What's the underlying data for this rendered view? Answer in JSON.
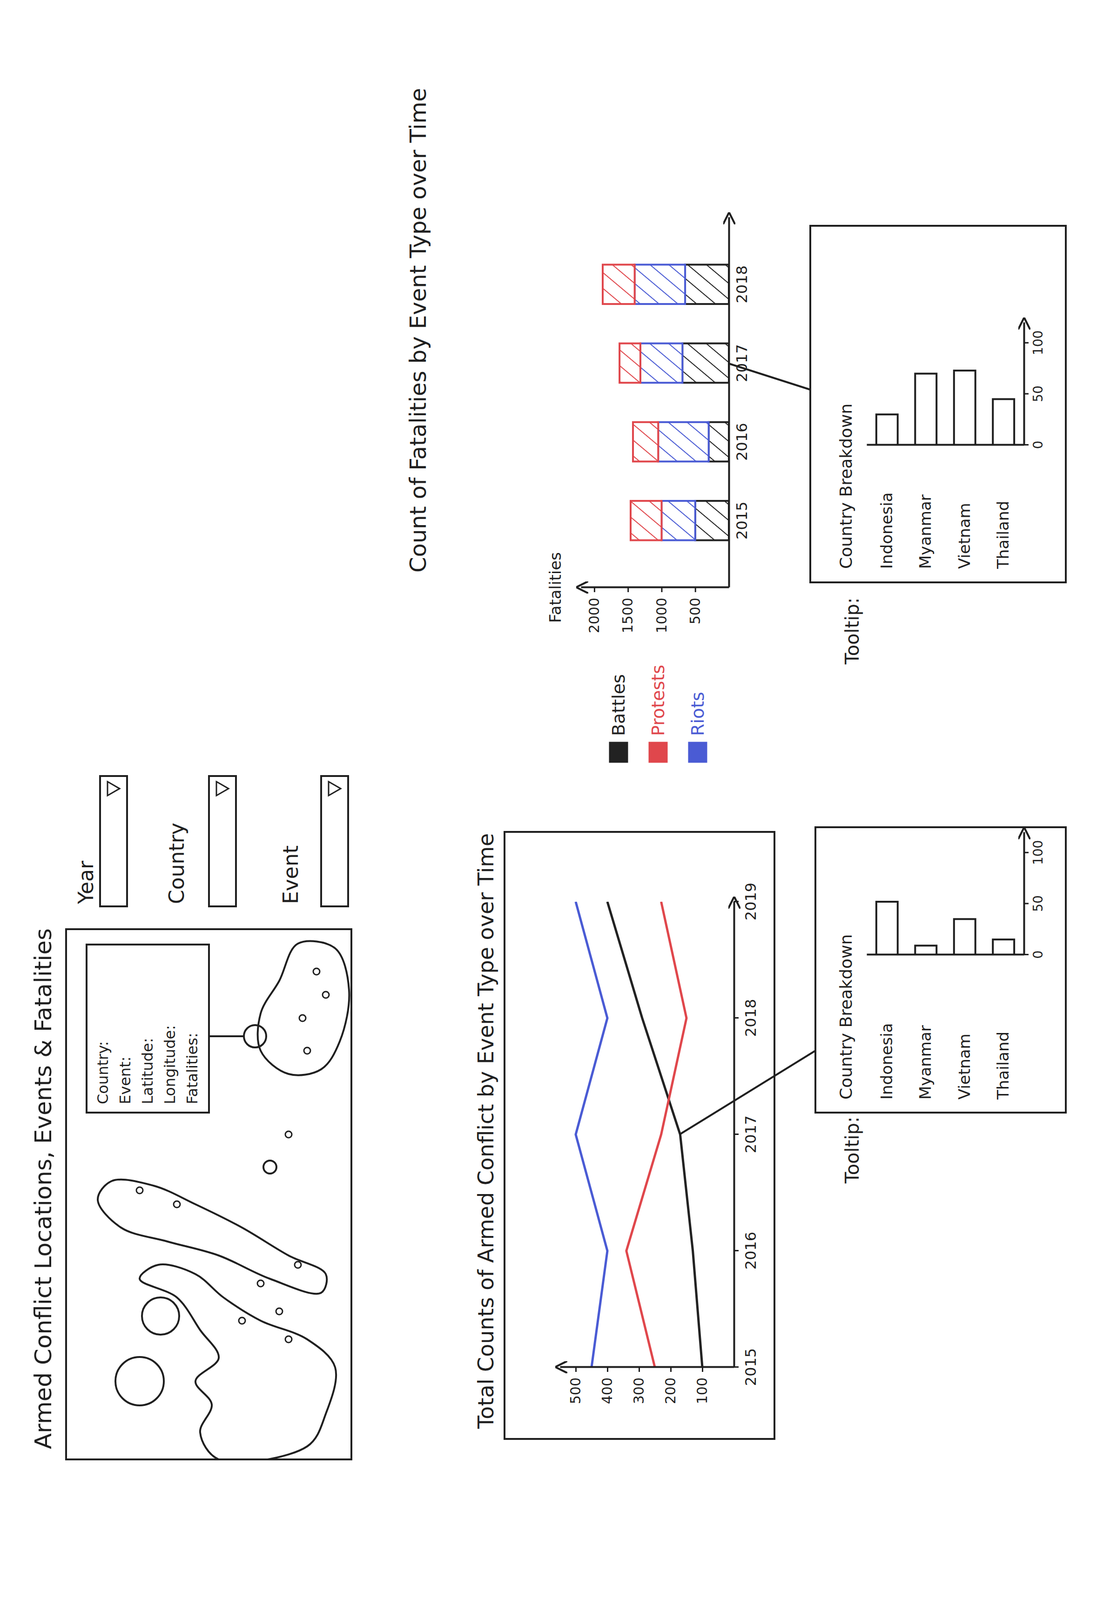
{
  "title": "Armed Conflict Locations, Events & Fatalities",
  "map": {
    "tooltip": [
      "Country:",
      "Event:",
      "Latitude:",
      "Longitude:",
      "Fatalities:"
    ]
  },
  "filters": [
    "Year",
    "Country",
    "Event"
  ],
  "chart_data": [
    {
      "type": "line",
      "title": "Total Counts of Armed Conflict by Event Type over Time",
      "x": [
        2015,
        2016,
        2017,
        2018,
        2019
      ],
      "xlim": [
        2015,
        2019
      ],
      "xticks": [
        2015,
        2016,
        2017,
        2018,
        2019
      ],
      "ylim": [
        0,
        550
      ],
      "yticks": [
        100,
        200,
        300,
        400,
        500
      ],
      "legend": "right",
      "series": [
        {
          "name": "Battles",
          "color": "#222222",
          "values": [
            100,
            130,
            170,
            290,
            400
          ]
        },
        {
          "name": "Protests",
          "color": "#e0474c",
          "values": [
            250,
            340,
            230,
            150,
            230
          ]
        },
        {
          "name": "Riots",
          "color": "#4a5bd4",
          "values": [
            450,
            400,
            500,
            400,
            500
          ]
        }
      ]
    },
    {
      "type": "bar",
      "annotation": "Tooltip:",
      "title": "Country Breakdown",
      "orientation": "horizontal",
      "categories": [
        "Indonesia",
        "Myanmar",
        "Vietnam",
        "Thailand"
      ],
      "values": [
        52,
        9,
        35,
        15
      ],
      "xlim": [
        0,
        120
      ],
      "xticks": [
        0,
        50,
        100
      ]
    },
    {
      "type": "bar",
      "stacked": true,
      "title": "Count of Fatalities by Event Type over Time",
      "y_label": "Fatalities",
      "categories": [
        "2015",
        "2016",
        "2017",
        "2018"
      ],
      "ylim": [
        0,
        2200
      ],
      "yticks": [
        500,
        1000,
        1500,
        2000
      ],
      "series": [
        {
          "name": "Battles",
          "color": "#222222",
          "values": [
            500,
            300,
            690,
            650
          ]
        },
        {
          "name": "Riots",
          "color": "#4a5bd4",
          "values": [
            500,
            750,
            625,
            750
          ]
        },
        {
          "name": "Protests",
          "color": "#e0474c",
          "values": [
            460,
            375,
            310,
            475
          ]
        }
      ]
    },
    {
      "type": "bar",
      "annotation": "Tooltip:",
      "title": "Country Breakdown",
      "orientation": "horizontal",
      "categories": [
        "Indonesia",
        "Myanmar",
        "Vietnam",
        "Thailand"
      ],
      "values": [
        30,
        70,
        73,
        45
      ],
      "xlim": [
        0,
        120
      ],
      "xticks": [
        0,
        50,
        100
      ]
    }
  ]
}
